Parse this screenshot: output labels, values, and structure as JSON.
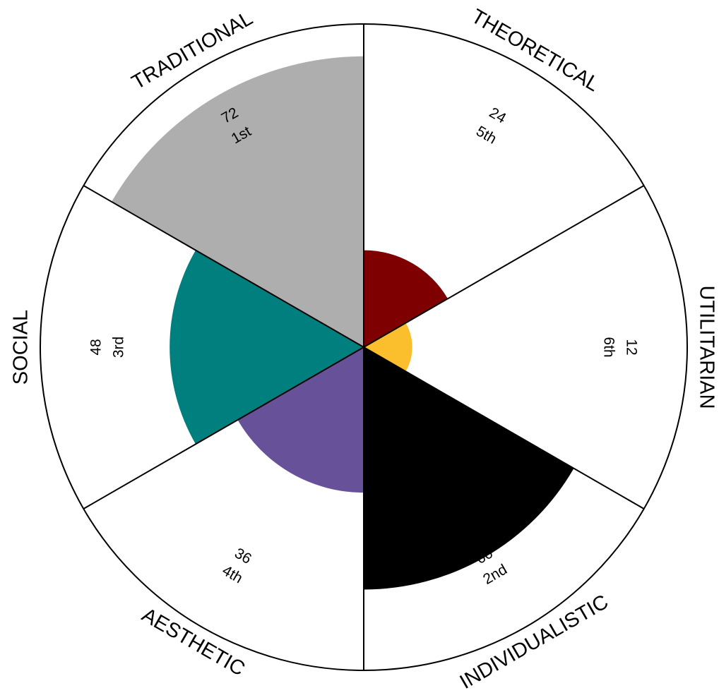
{
  "chart_data": {
    "type": "polar-area",
    "title": "",
    "rlim": [
      0,
      80
    ],
    "grid": false,
    "legend": "none",
    "categories": [
      {
        "name": "THEORETICAL",
        "value": 24,
        "rank": "5th",
        "color": "#7f0000",
        "value_text": "24"
      },
      {
        "name": "UTILITARIAN",
        "value": 12,
        "rank": "6th",
        "color": "#fbbf2e",
        "value_text": "12"
      },
      {
        "name": "INDIVIDUALISTIC",
        "value": 60,
        "rank": "2nd",
        "color": "#000000",
        "value_text": "60"
      },
      {
        "name": "AESTHETIC",
        "value": 36,
        "rank": "4th",
        "color": "#67529a",
        "value_text": "36"
      },
      {
        "name": "SOCIAL",
        "value": 48,
        "rank": "3rd",
        "color": "#007f7f",
        "value_text": "48"
      },
      {
        "name": "TRADITIONAL",
        "value": 72,
        "rank": "1st",
        "color": "#aeaeae",
        "value_text": "72"
      }
    ]
  }
}
